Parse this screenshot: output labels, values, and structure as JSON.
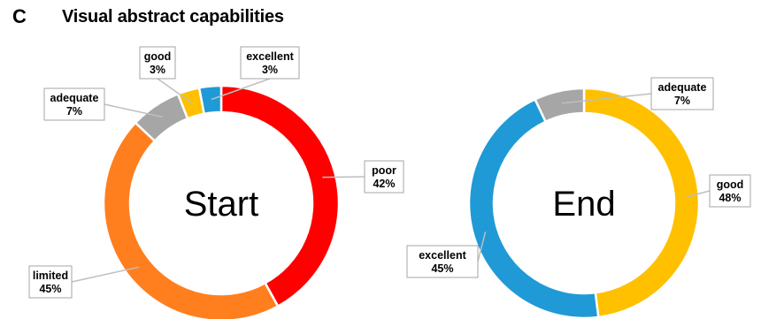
{
  "figure": {
    "panel_letter": "C",
    "title": "Visual abstract capabilities"
  },
  "chart_data": [
    {
      "type": "donut",
      "center_label": "Start",
      "slices": [
        {
          "label": "poor",
          "value": 42,
          "display": "42%",
          "color": "#ff0000"
        },
        {
          "label": "limited",
          "value": 45,
          "display": "45%",
          "color": "#ff7f1f"
        },
        {
          "label": "adequate",
          "value": 7,
          "display": "7%",
          "color": "#a6a6a6"
        },
        {
          "label": "good",
          "value": 3,
          "display": "3%",
          "color": "#ffc000"
        },
        {
          "label": "excellent",
          "value": 3,
          "display": "3%",
          "color": "#1f9ad6"
        }
      ]
    },
    {
      "type": "donut",
      "center_label": "End",
      "slices": [
        {
          "label": "good",
          "value": 48,
          "display": "48%",
          "color": "#ffc000"
        },
        {
          "label": "excellent",
          "value": 45,
          "display": "45%",
          "color": "#1f9ad6"
        },
        {
          "label": "adequate",
          "value": 7,
          "display": "7%",
          "color": "#a6a6a6"
        }
      ]
    }
  ]
}
